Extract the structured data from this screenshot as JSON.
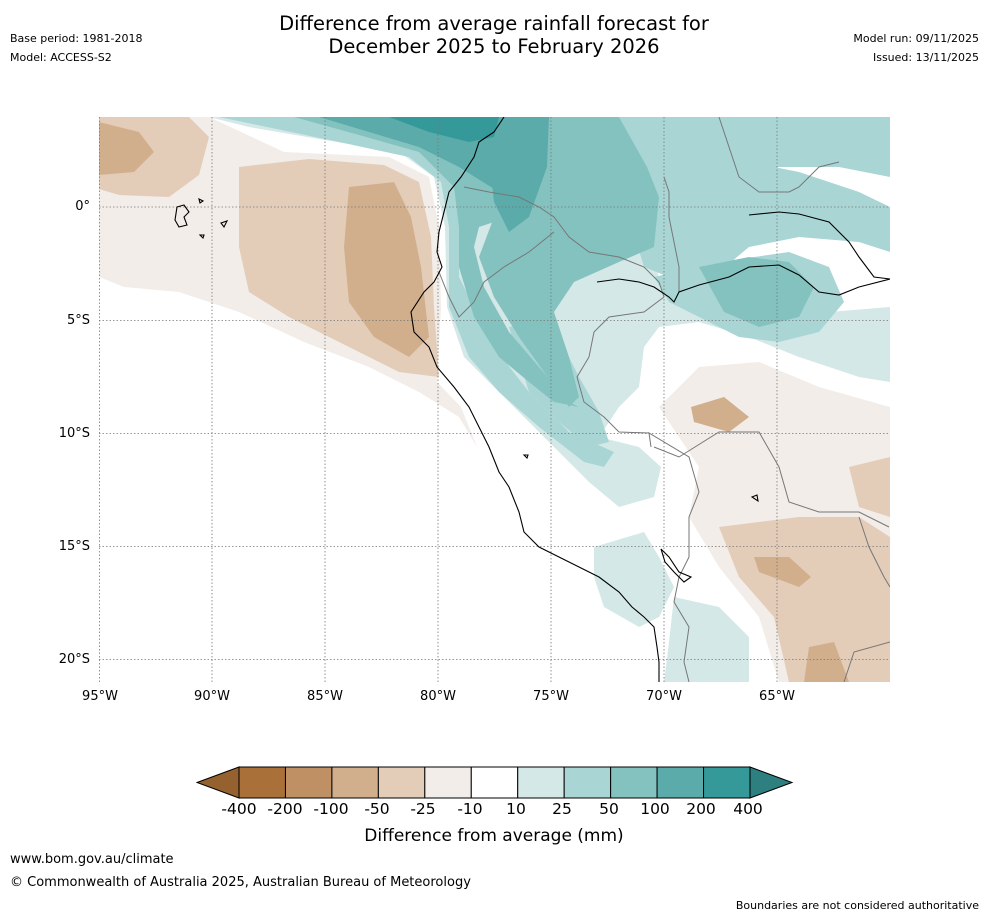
{
  "header": {
    "title_line1": "Difference from average rainfall forecast for",
    "title_line2": "December 2025 to February 2026",
    "base_period": "Base period: 1981-2018",
    "model": "Model: ACCESS-S2",
    "model_run": "Model run: 09/11/2025",
    "issued": "Issued: 13/11/2025"
  },
  "map": {
    "lat_labels": [
      "0°",
      "5°S",
      "10°S",
      "15°S",
      "20°S"
    ],
    "lon_labels": [
      "95°W",
      "90°W",
      "85°W",
      "80°W",
      "75°W",
      "70°W",
      "65°W"
    ]
  },
  "colorbar": {
    "title": "Difference from average (mm)",
    "ticks": [
      "-400",
      "-200",
      "-100",
      "-50",
      "-25",
      "-10",
      "10",
      "25",
      "50",
      "100",
      "200",
      "400"
    ],
    "colors": [
      "#a9703a",
      "#be9064",
      "#d2af8c",
      "#e3cdb9",
      "#f2ede8",
      "#ffffff",
      "#d4e8e7",
      "#a9d6d5",
      "#84c2c0",
      "#5aabaa",
      "#35999a"
    ],
    "low_extend_color": "#94612f",
    "high_extend_color": "#2d7f80"
  },
  "footer": {
    "url": "www.bom.gov.au/climate",
    "copyright": "© Commonwealth of Australia 2025, Australian Bureau of Meteorology",
    "disclaimer": "Boundaries are not considered authoritative"
  }
}
